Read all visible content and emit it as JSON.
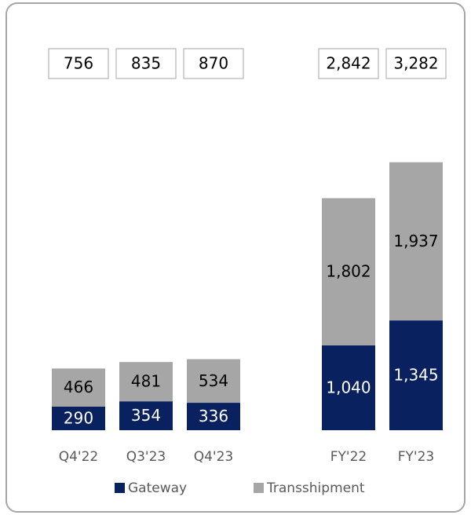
{
  "chart_data": {
    "type": "stacked_bar",
    "categories": [
      "Q4'22",
      "Q3'23",
      "Q4'23",
      "FY'22",
      "FY'23"
    ],
    "series": [
      {
        "name": "Gateway",
        "color": "#0a2160",
        "values": [
          290,
          354,
          336,
          1040,
          1345
        ],
        "value_labels": [
          "290",
          "354",
          "336",
          "1,040",
          "1,345"
        ]
      },
      {
        "name": "Transshipment",
        "color": "#a6a6a6",
        "values": [
          466,
          481,
          534,
          1802,
          1937
        ],
        "value_labels": [
          "466",
          "481",
          "534",
          "1,802",
          "1,937"
        ]
      }
    ],
    "totals": [
      756,
      835,
      870,
      2842,
      3282
    ],
    "total_labels": [
      "756",
      "835",
      "870",
      "2,842",
      "3,282"
    ],
    "ylim": [
      0,
      3500
    ]
  }
}
